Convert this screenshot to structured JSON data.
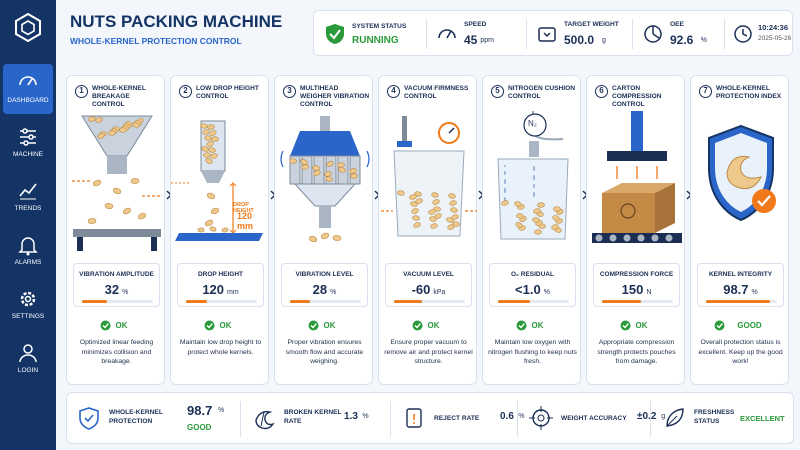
{
  "sidebar": [
    "DASHBOARD",
    "MACHINE",
    "TRENDS",
    "ALARMS",
    "SETTINGS",
    "LOGIN"
  ],
  "header": {
    "title": "NUTS PACKING MACHINE",
    "subtitle": "WHOLE-KERNEL PROTECTION CONTROL"
  },
  "status_bar": {
    "system_status": {
      "label": "SYSTEM STATUS",
      "value": "RUNNING"
    },
    "speed": {
      "label": "SPEED",
      "value": "45",
      "unit": "ppm"
    },
    "target_weight": {
      "label": "TARGET WEIGHT",
      "value": "500.0",
      "unit": "g"
    },
    "oee": {
      "label": "OEE",
      "value": "92.6",
      "unit": "%"
    },
    "clock": {
      "time": "10:24:36",
      "date": "2025-05-26"
    }
  },
  "steps": [
    {
      "number": "1",
      "title": "WHOLE-KERNEL BREAKAGE CONTROL",
      "metric": "VIBRATION AMPLITUDE",
      "value": "32",
      "unit": "%",
      "status": "OK",
      "description": "Optimized linear feeding minimizes collision and breakage."
    },
    {
      "number": "2",
      "title": "LOW DROP HEIGHT CONTROL",
      "image_labels": [
        "DROP HEIGHT",
        "120 mm"
      ],
      "metric": "DROP HEIGHT",
      "value": "120",
      "unit": "mm",
      "status": "OK",
      "description": "Maintain low drop height to protect whole kernels."
    },
    {
      "number": "3",
      "title": "MULTIHEAD WEIGHER VIBRATION CONTROL",
      "metric": "VIBRATION LEVEL",
      "value": "28",
      "unit": "%",
      "status": "OK",
      "description": "Proper vibration ensures smooth flow and accurate weighing."
    },
    {
      "number": "4",
      "title": "VACUUM FIRMNESS CONTROL",
      "metric": "VACUUM LEVEL",
      "value": "-60",
      "unit": "kPa",
      "status": "OK",
      "description": "Ensure proper vacuum to remove air and protect kernel structure."
    },
    {
      "number": "5",
      "title": "NITROGEN CUSHION CONTROL",
      "image_labels": [
        "N₂"
      ],
      "metric": "O₂ RESIDUAL",
      "value": "<1.0",
      "unit": "%",
      "status": "OK",
      "description": "Maintain low oxygen with nitrogen flushing to keep nuts fresh."
    },
    {
      "number": "6",
      "title": "CARTON COMPRESSION CONTROL",
      "metric": "COMPRESSION FORCE",
      "value": "150",
      "unit": "N",
      "status": "OK",
      "description": "Appropriate compression strength protects pouches from damage."
    },
    {
      "number": "7",
      "title": "WHOLE-KERNEL PROTECTION INDEX",
      "metric": "KERNEL INTEGRITY",
      "value": "98.7",
      "unit": "%",
      "status": "GOOD",
      "description": "Overall protection status is excellent. Keep up the good work!"
    }
  ],
  "summary": [
    {
      "label": "WHOLE-KERNEL PROTECTION",
      "value": "98.7",
      "unit": "%",
      "status": "GOOD"
    },
    {
      "label": "BROKEN KERNEL RATE",
      "value": "1.3",
      "unit": "%"
    },
    {
      "label": "REJECT RATE",
      "value": "0.6",
      "unit": "%"
    },
    {
      "label": "WEIGHT ACCURACY",
      "value": "±0.2",
      "unit": "g"
    },
    {
      "label": "FRESHNESS STATUS",
      "value": "EXCELLENT"
    }
  ]
}
